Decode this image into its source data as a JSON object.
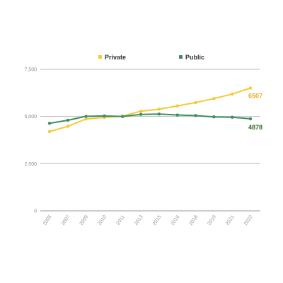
{
  "chart_data": {
    "type": "line",
    "title": "",
    "xlabel": "",
    "ylabel": "",
    "categories": [
      "2005",
      "2007",
      "2009",
      "2010",
      "2011",
      "2013",
      "2015",
      "2016",
      "2018",
      "2019",
      "2021",
      "2022"
    ],
    "series": [
      {
        "name": "Private",
        "color": "#F5C932",
        "values": [
          4200,
          4480,
          4870,
          4950,
          5020,
          5280,
          5390,
          5560,
          5740,
          5950,
          6190,
          6507
        ],
        "end_label": "6507",
        "end_label_color": "#F0A81E"
      },
      {
        "name": "Public",
        "color": "#3E8E63",
        "values": [
          4640,
          4800,
          5010,
          5030,
          5000,
          5110,
          5130,
          5080,
          5050,
          4980,
          4960,
          4878
        ],
        "end_label": "4878",
        "end_label_color": "#2F6B1F"
      }
    ],
    "ylim": [
      0,
      7500
    ],
    "yticks": [
      0,
      2500,
      5000,
      7500
    ],
    "ytick_labels": [
      "0",
      "2,500",
      "5,000",
      "7,500"
    ],
    "grid": true,
    "legend_position": "top-center"
  }
}
